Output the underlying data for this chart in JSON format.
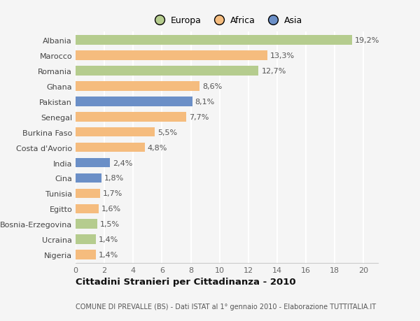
{
  "countries": [
    "Albania",
    "Marocco",
    "Romania",
    "Ghana",
    "Pakistan",
    "Senegal",
    "Burkina Faso",
    "Costa d'Avorio",
    "India",
    "Cina",
    "Tunisia",
    "Egitto",
    "Bosnia-Erzegovina",
    "Ucraina",
    "Nigeria"
  ],
  "values": [
    19.2,
    13.3,
    12.7,
    8.6,
    8.1,
    7.7,
    5.5,
    4.8,
    2.4,
    1.8,
    1.7,
    1.6,
    1.5,
    1.4,
    1.4
  ],
  "labels": [
    "19,2%",
    "13,3%",
    "12,7%",
    "8,6%",
    "8,1%",
    "7,7%",
    "5,5%",
    "4,8%",
    "2,4%",
    "1,8%",
    "1,7%",
    "1,6%",
    "1,5%",
    "1,4%",
    "1,4%"
  ],
  "continents": [
    "Europa",
    "Africa",
    "Europa",
    "Africa",
    "Asia",
    "Africa",
    "Africa",
    "Africa",
    "Asia",
    "Asia",
    "Africa",
    "Africa",
    "Europa",
    "Europa",
    "Africa"
  ],
  "colors": {
    "Europa": "#b5cc8e",
    "Africa": "#f5bc7e",
    "Asia": "#6b8fc7"
  },
  "legend_labels": [
    "Europa",
    "Africa",
    "Asia"
  ],
  "legend_colors": [
    "#b5cc8e",
    "#f5bc7e",
    "#6b8fc7"
  ],
  "title": "Cittadini Stranieri per Cittadinanza - 2010",
  "subtitle": "COMUNE DI PREVALLE (BS) - Dati ISTAT al 1° gennaio 2010 - Elaborazione TUTTITALIA.IT",
  "xlim": [
    0,
    21
  ],
  "xticks": [
    0,
    2,
    4,
    6,
    8,
    10,
    12,
    14,
    16,
    18,
    20
  ],
  "bg_color": "#f5f5f5",
  "grid_color": "#ffffff",
  "bar_height": 0.62,
  "label_fontsize": 8,
  "ytick_fontsize": 8,
  "xtick_fontsize": 8
}
